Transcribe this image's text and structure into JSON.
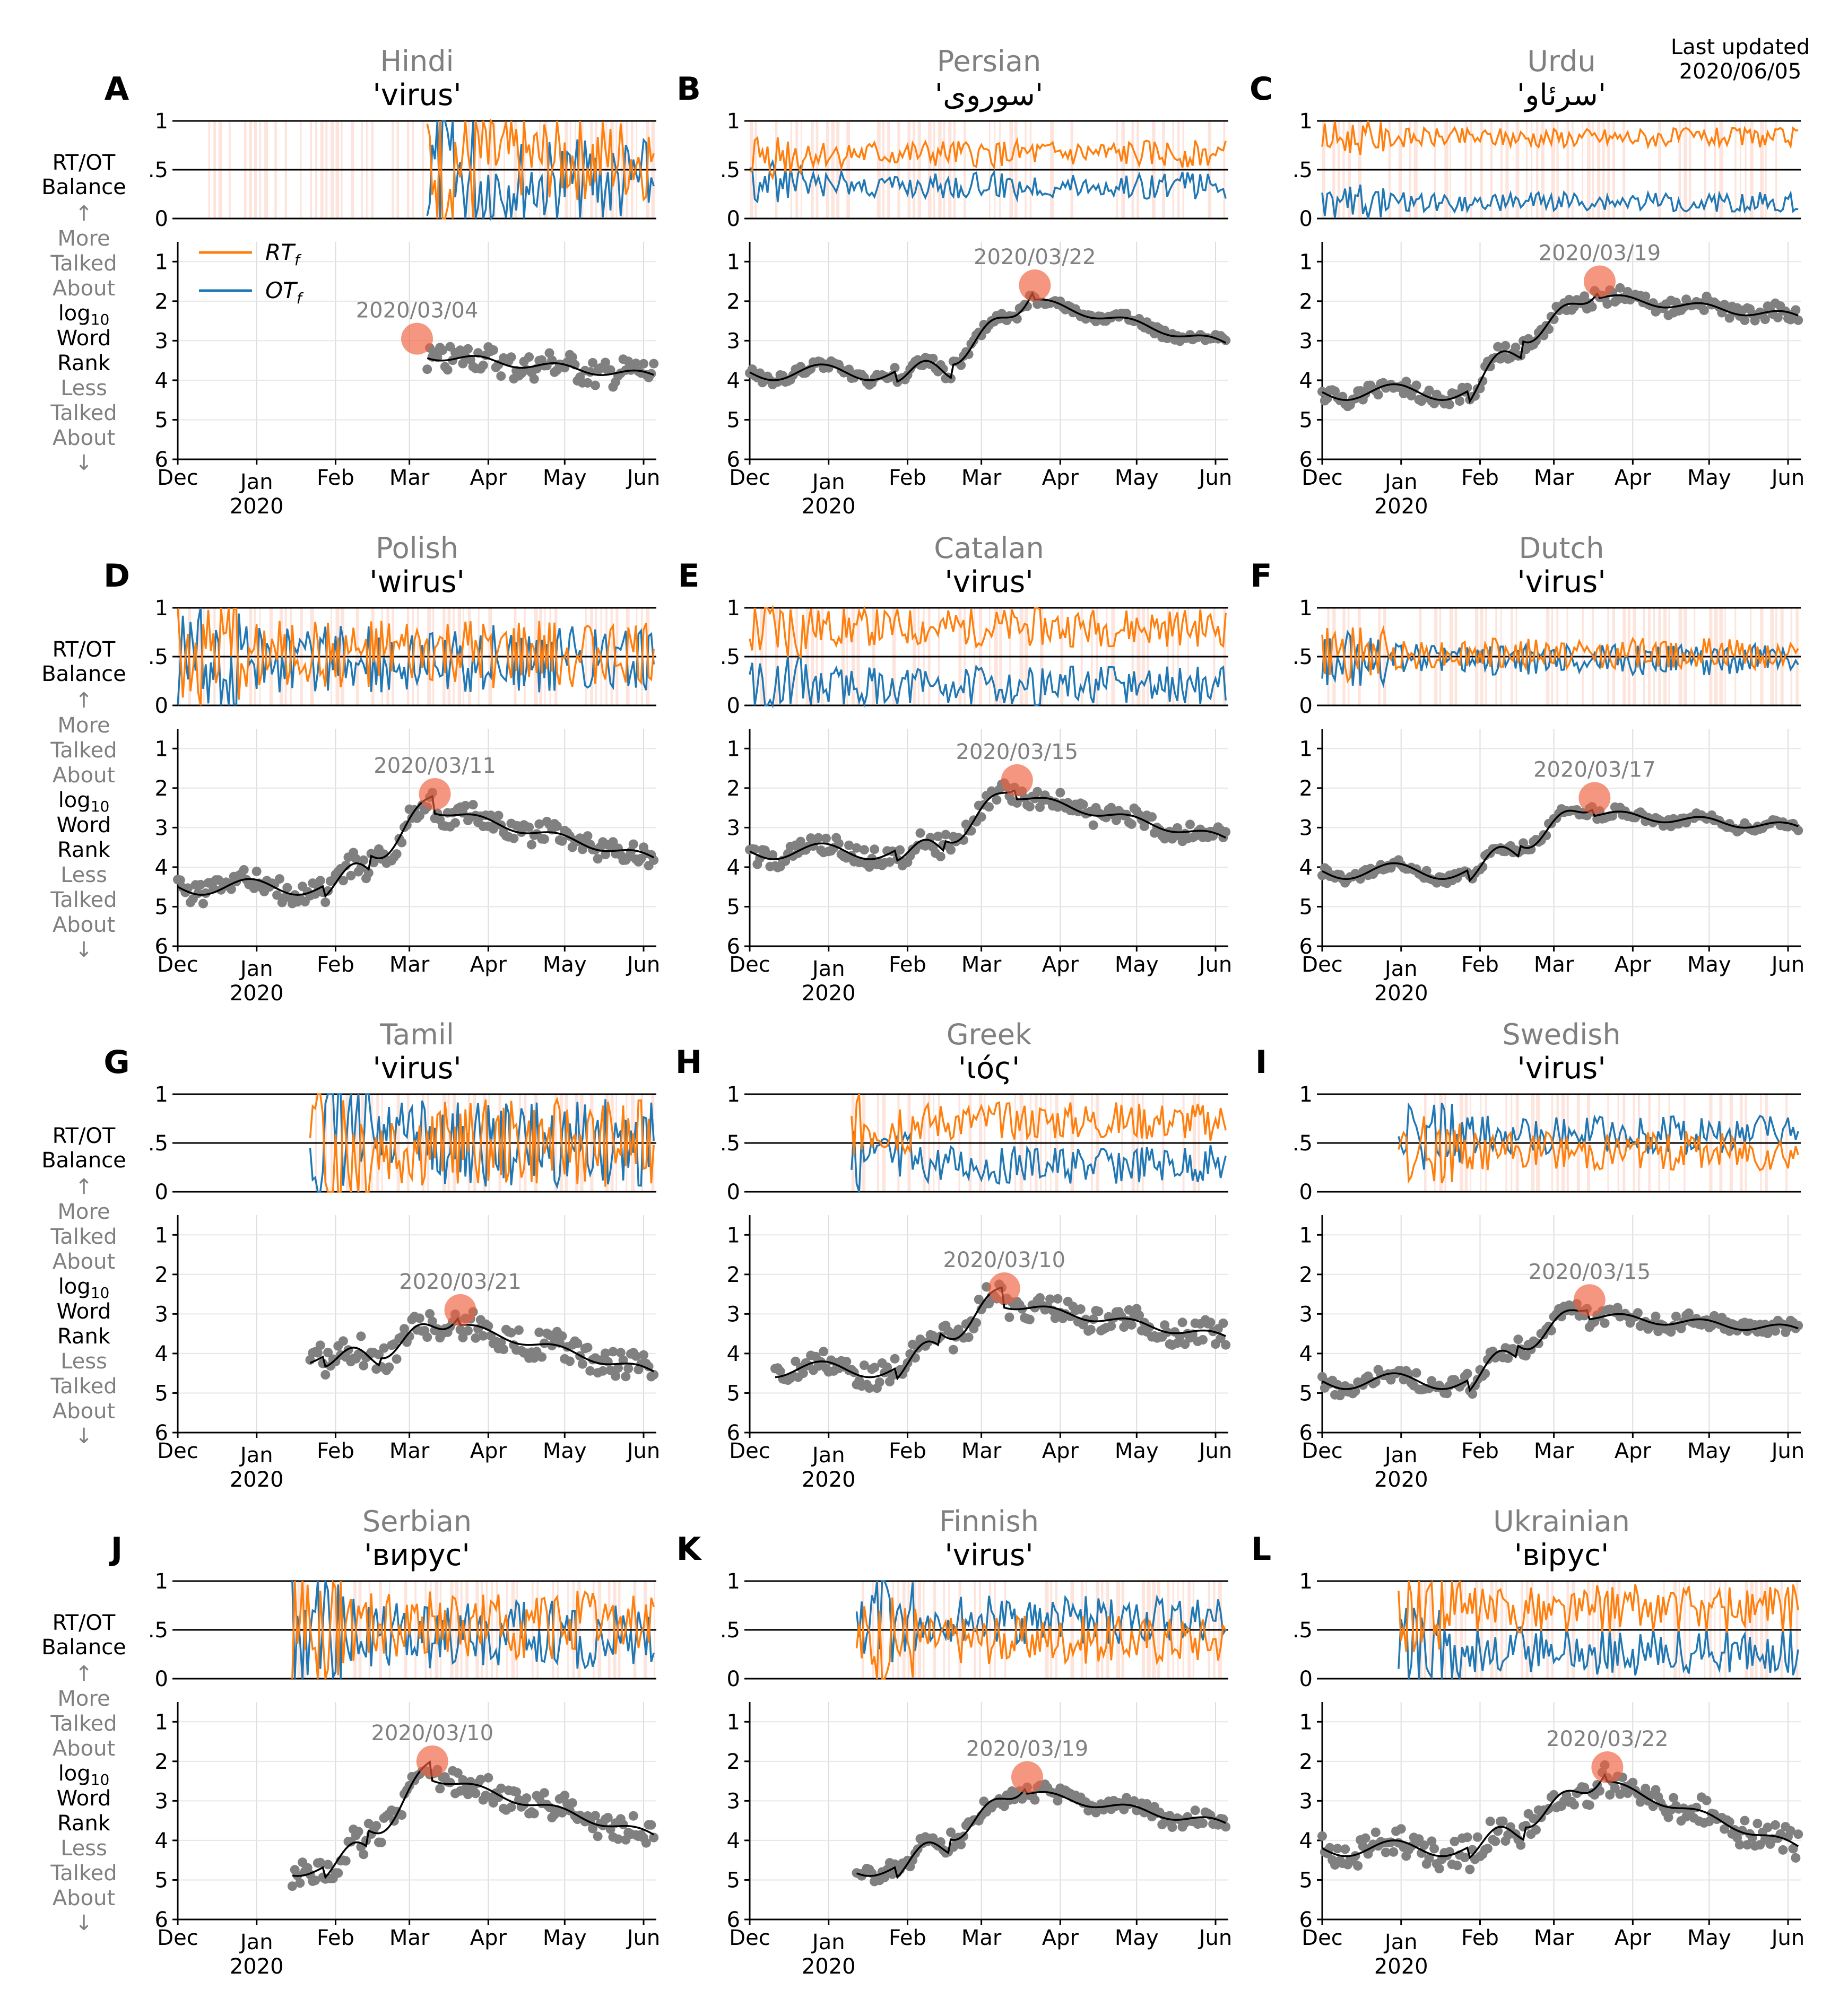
{
  "header": {
    "updated_label": "Last updated",
    "updated_date": "2020/06/05"
  },
  "colors": {
    "rt": "#ff7f0e",
    "ot": "#1f77b4",
    "marker": "#f0603c",
    "band": "#fbd3c6",
    "dots": "#808080",
    "smooth": "#000000",
    "title_gray": "#808080"
  },
  "chart_data": {
    "type": "line",
    "x_ticks": [
      "Dec",
      "Jan",
      "Feb",
      "Mar",
      "Apr",
      "May",
      "Jun"
    ],
    "x_year": "2020",
    "top_ylabel": [
      "RT/OT",
      "Balance"
    ],
    "top_yticks": [
      "1",
      ".5",
      "0"
    ],
    "bottom_ylabel": [
      "↑",
      "More",
      "Talked",
      "About",
      "log10",
      "Word",
      "Rank",
      "Less",
      "Talked",
      "About",
      "↓"
    ],
    "bottom_yticks": [
      "1",
      "2",
      "3",
      "4",
      "5",
      "6"
    ],
    "legend": {
      "rt": "RT",
      "ot": "OT",
      "sub": "f"
    },
    "ylim_balance": [
      0,
      1
    ],
    "ylim_rank": [
      6,
      0.5
    ],
    "panels": [
      {
        "letter": "A",
        "language": "Hindi",
        "word": "'virus'",
        "peak_date": "2020/03/04",
        "peak_rank": 2.95,
        "start_day": 45,
        "rank_start": 4.8,
        "rank_mid": 3.9,
        "rank_end": 3.9,
        "rt_level": 0.62,
        "noise": 0.45,
        "gap_before": 98,
        "shade_start": 10,
        "dot_spread": 0.35
      },
      {
        "letter": "B",
        "language": "Persian",
        "word": "'سوروی'",
        "peak_date": "2020/03/22",
        "peak_rank": 1.6,
        "start_day": 0,
        "rank_start": 3.8,
        "rank_mid": 3.7,
        "rank_end": 3.1,
        "rt_level": 0.66,
        "noise": 0.14,
        "gap_before": 0,
        "shade_start": 0,
        "dot_spread": 0.12
      },
      {
        "letter": "C",
        "language": "Urdu",
        "word": "'سرئاو'",
        "peak_date": "2020/03/19",
        "peak_rank": 1.5,
        "start_day": 0,
        "rank_start": 4.3,
        "rank_mid": 2.6,
        "rank_end": 2.4,
        "rt_level": 0.83,
        "noise": 0.1,
        "gap_before": 0,
        "shade_start": 0,
        "dot_spread": 0.2
      },
      {
        "letter": "D",
        "language": "Polish",
        "word": "'wirus'",
        "peak_date": "2020/03/11",
        "peak_rank": 2.15,
        "start_day": 0,
        "rank_start": 4.5,
        "rank_mid": 3.8,
        "rank_end": 3.8,
        "rt_level": 0.52,
        "noise": 0.35,
        "gap_before": 0,
        "shade_start": 0,
        "dot_spread": 0.3
      },
      {
        "letter": "E",
        "language": "Catalan",
        "word": "'virus'",
        "peak_date": "2020/03/15",
        "peak_rank": 1.8,
        "start_day": 0,
        "rank_start": 3.6,
        "rank_mid": 3.5,
        "rank_end": 3.3,
        "rt_level": 0.8,
        "noise": 0.2,
        "gap_before": 0,
        "shade_start": 0,
        "dot_spread": 0.25
      },
      {
        "letter": "F",
        "language": "Dutch",
        "word": "'virus'",
        "peak_date": "2020/03/17",
        "peak_rank": 2.25,
        "start_day": 0,
        "rank_start": 4.1,
        "rank_mid": 3.3,
        "rank_end": 3.0,
        "rt_level": 0.53,
        "noise": 0.16,
        "gap_before": 0,
        "shade_start": 0,
        "dot_spread": 0.12
      },
      {
        "letter": "G",
        "language": "Tamil",
        "word": "'virus'",
        "peak_date": "2020/03/21",
        "peak_rank": 2.9,
        "start_day": 52,
        "rank_start": 4.1,
        "rank_mid": 4.1,
        "rank_end": 4.5,
        "rt_level": 0.5,
        "noise": 0.45,
        "gap_before": 52,
        "shade_start": 50,
        "dot_spread": 0.35
      },
      {
        "letter": "H",
        "language": "Greek",
        "word": "'ιός'",
        "peak_date": "2020/03/10",
        "peak_rank": 2.35,
        "start_day": 10,
        "rank_start": 4.4,
        "rank_mid": 3.5,
        "rank_end": 3.6,
        "rt_level": 0.72,
        "noise": 0.2,
        "gap_before": 40,
        "shade_start": 40,
        "dot_spread": 0.3
      },
      {
        "letter": "I",
        "language": "Swedish",
        "word": "'virus'",
        "peak_date": "2020/03/15",
        "peak_rank": 2.65,
        "start_day": 0,
        "rank_start": 4.7,
        "rank_mid": 3.6,
        "rank_end": 3.4,
        "rt_level": 0.42,
        "noise": 0.2,
        "gap_before": 30,
        "shade_start": 40,
        "dot_spread": 0.2
      },
      {
        "letter": "J",
        "language": "Serbian",
        "word": "'вирус'",
        "peak_date": "2020/03/10",
        "peak_rank": 2.0,
        "start_day": 0,
        "rank_start": 4.7,
        "rank_mid": 3.9,
        "rank_end": 3.9,
        "rt_level": 0.55,
        "noise": 0.35,
        "gap_before": 45,
        "shade_start": 45,
        "dot_spread": 0.35
      },
      {
        "letter": "K",
        "language": "Finnish",
        "word": "'virus'",
        "peak_date": "2020/03/19",
        "peak_rank": 2.4,
        "start_day": 20,
        "rank_start": 4.7,
        "rank_mid": 3.8,
        "rank_end": 3.6,
        "rt_level": 0.4,
        "noise": 0.25,
        "gap_before": 42,
        "shade_start": 42,
        "dot_spread": 0.2
      },
      {
        "letter": "L",
        "language": "Ukrainian",
        "word": "'вірус'",
        "peak_date": "2020/03/22",
        "peak_rank": 2.15,
        "start_day": 0,
        "rank_start": 4.2,
        "rank_mid": 3.5,
        "rank_end": 4.2,
        "rt_level": 0.72,
        "noise": 0.25,
        "gap_before": 30,
        "shade_start": 30,
        "dot_spread": 0.35
      }
    ]
  }
}
